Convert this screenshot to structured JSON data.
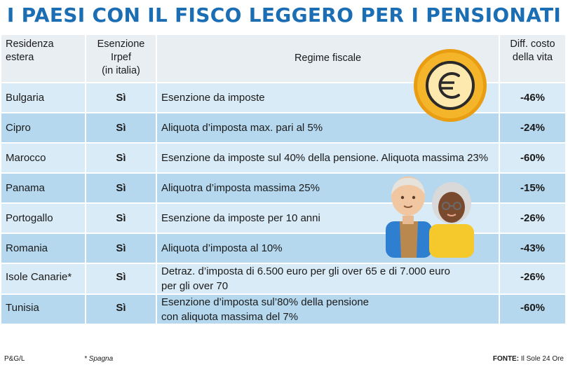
{
  "title": "I PAESI CON IL FISCO LEGGERO PER I PENSIONATI",
  "headers": {
    "residenza": "Residenza\nestera",
    "esenzione": "Esenzione\nIrpef\n(in italia)",
    "regime": "Regime fiscale",
    "diff": "Diff. costo\ndella vita"
  },
  "rows": [
    {
      "country": "Bulgaria",
      "irpef": "Sì",
      "regime": "Esenzione da imposte",
      "diff": "-46%"
    },
    {
      "country": "Cipro",
      "irpef": "Sì",
      "regime": "Aliquota d’imposta max. pari al 5%",
      "diff": "-24%"
    },
    {
      "country": "Marocco",
      "irpef": "Sì",
      "regime": "Esenzione da imposte sul 40% della pensione. Aliquota massima 23%",
      "diff": "-60%"
    },
    {
      "country": "Panama",
      "irpef": "Sì",
      "regime": "Aliquotra d’imposta massima 25%",
      "diff": "-15%"
    },
    {
      "country": "Portogallo",
      "irpef": "Sì",
      "regime": "Esenzione da imposte per 10 anni",
      "diff": "-26%"
    },
    {
      "country": "Romania",
      "irpef": "Sì",
      "regime": "Aliquota d’imposta al 10%",
      "diff": "-43%"
    },
    {
      "country": "Isole Canarie*",
      "irpef": "Sì",
      "regime": "Detraz. d’imposta di 6.500 euro per gli over 65 e di 7.000 euro\nper gli over 70",
      "diff": "-26%"
    },
    {
      "country": "Tunisia",
      "irpef": "Sì",
      "regime": "Esenzione d’imposta sul’80% della pensione\ncon aliquota massima del 7%",
      "diff": "-60%"
    }
  ],
  "footer": {
    "left": "P&G/L",
    "note": "* Spagna",
    "source_label": "FONTE:",
    "source": "Il Sole 24 Ore"
  },
  "icons": [
    "euro-coin-icon",
    "elderly-couple-icon"
  ],
  "colors": {
    "title": "#1b6eb3",
    "header_bg": "#e9eef3",
    "row_light": "#d9ebf6",
    "row_dark": "#b5d8ee",
    "coin": "#f2b01e"
  }
}
